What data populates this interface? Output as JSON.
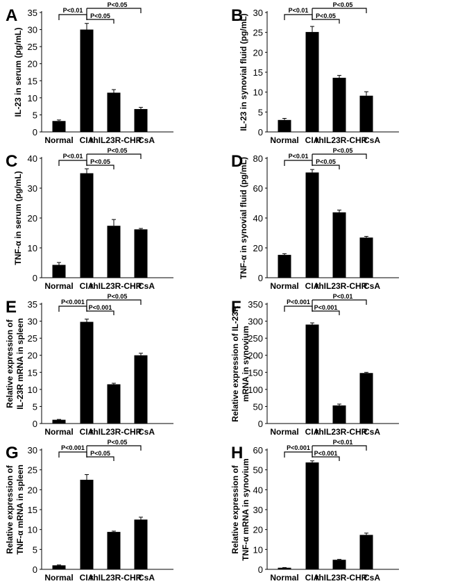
{
  "chart_data": [
    {
      "panel": "A",
      "type": "bar",
      "categories": [
        "Normal",
        "CIA",
        "rhIL23R-CHR",
        "CsA"
      ],
      "values": [
        3.2,
        30,
        11.5,
        6.7
      ],
      "errors": [
        0.3,
        1.8,
        0.9,
        0.5
      ],
      "ylabel": [
        "IL-23 in serum (pg/mL)"
      ],
      "ylim": [
        0,
        35
      ],
      "ytick_step": 5,
      "significance": [
        "P<0.01",
        "P<0.05",
        "P<0.05"
      ]
    },
    {
      "panel": "B",
      "type": "bar",
      "categories": [
        "Normal",
        "CIA",
        "rhIL23R-CHR",
        "CsA"
      ],
      "values": [
        3,
        25.1,
        13.6,
        9.1
      ],
      "errors": [
        0.4,
        1.4,
        0.6,
        1.0
      ],
      "ylabel": [
        "IL-23 in synovial  fluid (pg/mL)"
      ],
      "ylim": [
        0,
        30
      ],
      "ytick_step": 5,
      "significance": [
        "P<0.01",
        "P<0.05",
        "P<0.05"
      ]
    },
    {
      "panel": "C",
      "type": "bar",
      "categories": [
        "Normal",
        "CIA",
        "rhIL23R-CHR",
        "CsA"
      ],
      "values": [
        4.3,
        35,
        17.4,
        16.2
      ],
      "errors": [
        0.8,
        1.5,
        2.1,
        0.3
      ],
      "ylabel": [
        "TNF-α in serum (pg/mL)"
      ],
      "ylim": [
        0,
        40
      ],
      "ytick_step": 10,
      "significance": [
        "P<0.01",
        "P<0.05",
        "P<0.05"
      ]
    },
    {
      "panel": "D",
      "type": "bar",
      "categories": [
        "Normal",
        "CIA",
        "rhIL23R-CHR",
        "CsA"
      ],
      "values": [
        15.3,
        70.5,
        43.8,
        26.9
      ],
      "errors": [
        0.8,
        2,
        1.5,
        0.8
      ],
      "ylabel": [
        "TNF-α in synovial  fluid (pg/mL)"
      ],
      "ylim": [
        0,
        80
      ],
      "ytick_step": 20,
      "significance": [
        "P<0.01",
        "P<0.05",
        "P<0.05"
      ]
    },
    {
      "panel": "E",
      "type": "bar",
      "categories": [
        "Normal",
        "CIA",
        "rhIL23R-CHR",
        "CsA"
      ],
      "values": [
        1.1,
        29.8,
        11.5,
        20
      ],
      "errors": [
        0.1,
        0.8,
        0.3,
        0.6
      ],
      "ylabel": [
        "Relative expression of",
        "IL-23R mRNA in spleen"
      ],
      "ylim": [
        0,
        35
      ],
      "ytick_step": 5,
      "significance": [
        "P<0.001",
        "P<0.001",
        "P<0.05"
      ]
    },
    {
      "panel": "F",
      "type": "bar",
      "categories": [
        "Normal",
        "CIA",
        "rhIL23R-CHR",
        "CsA"
      ],
      "values": [
        0.5,
        290,
        53,
        148
      ],
      "errors": [
        0,
        5,
        4,
        2
      ],
      "ylabel": [
        "Relative expression of IL-23R",
        "mRNA in synovium"
      ],
      "ylim": [
        0,
        350
      ],
      "ytick_step": 50,
      "significance": [
        "P<0.001",
        "P<0.001",
        "P<0.01"
      ]
    },
    {
      "panel": "G",
      "type": "bar",
      "categories": [
        "Normal",
        "CIA",
        "rhIL23R-CHR",
        "CsA"
      ],
      "values": [
        1,
        22.5,
        9.4,
        12.5
      ],
      "errors": [
        0.1,
        1.3,
        0.2,
        0.6
      ],
      "ylabel": [
        "Relative expression of",
        "TNF-α mRNA in spleen"
      ],
      "ylim": [
        0,
        30
      ],
      "ytick_step": 5,
      "significance": [
        "P<0.001",
        "P<0.05",
        "P<0.05"
      ]
    },
    {
      "panel": "H",
      "type": "bar",
      "categories": [
        "Normal",
        "CIA",
        "rhIL23R-CHR",
        "CsA"
      ],
      "values": [
        0.8,
        53.7,
        4.8,
        17.3
      ],
      "errors": [
        0.1,
        0.8,
        0.2,
        0.9
      ],
      "ylabel": [
        "Relative expression of",
        "TNF-α mRNA in synovium"
      ],
      "ylim": [
        0,
        60
      ],
      "ytick_step": 10,
      "significance": [
        "P<0.001",
        "P<0.001",
        "P<0.01"
      ]
    }
  ],
  "colors": {
    "bar": "#000000",
    "axis": "#000000"
  }
}
